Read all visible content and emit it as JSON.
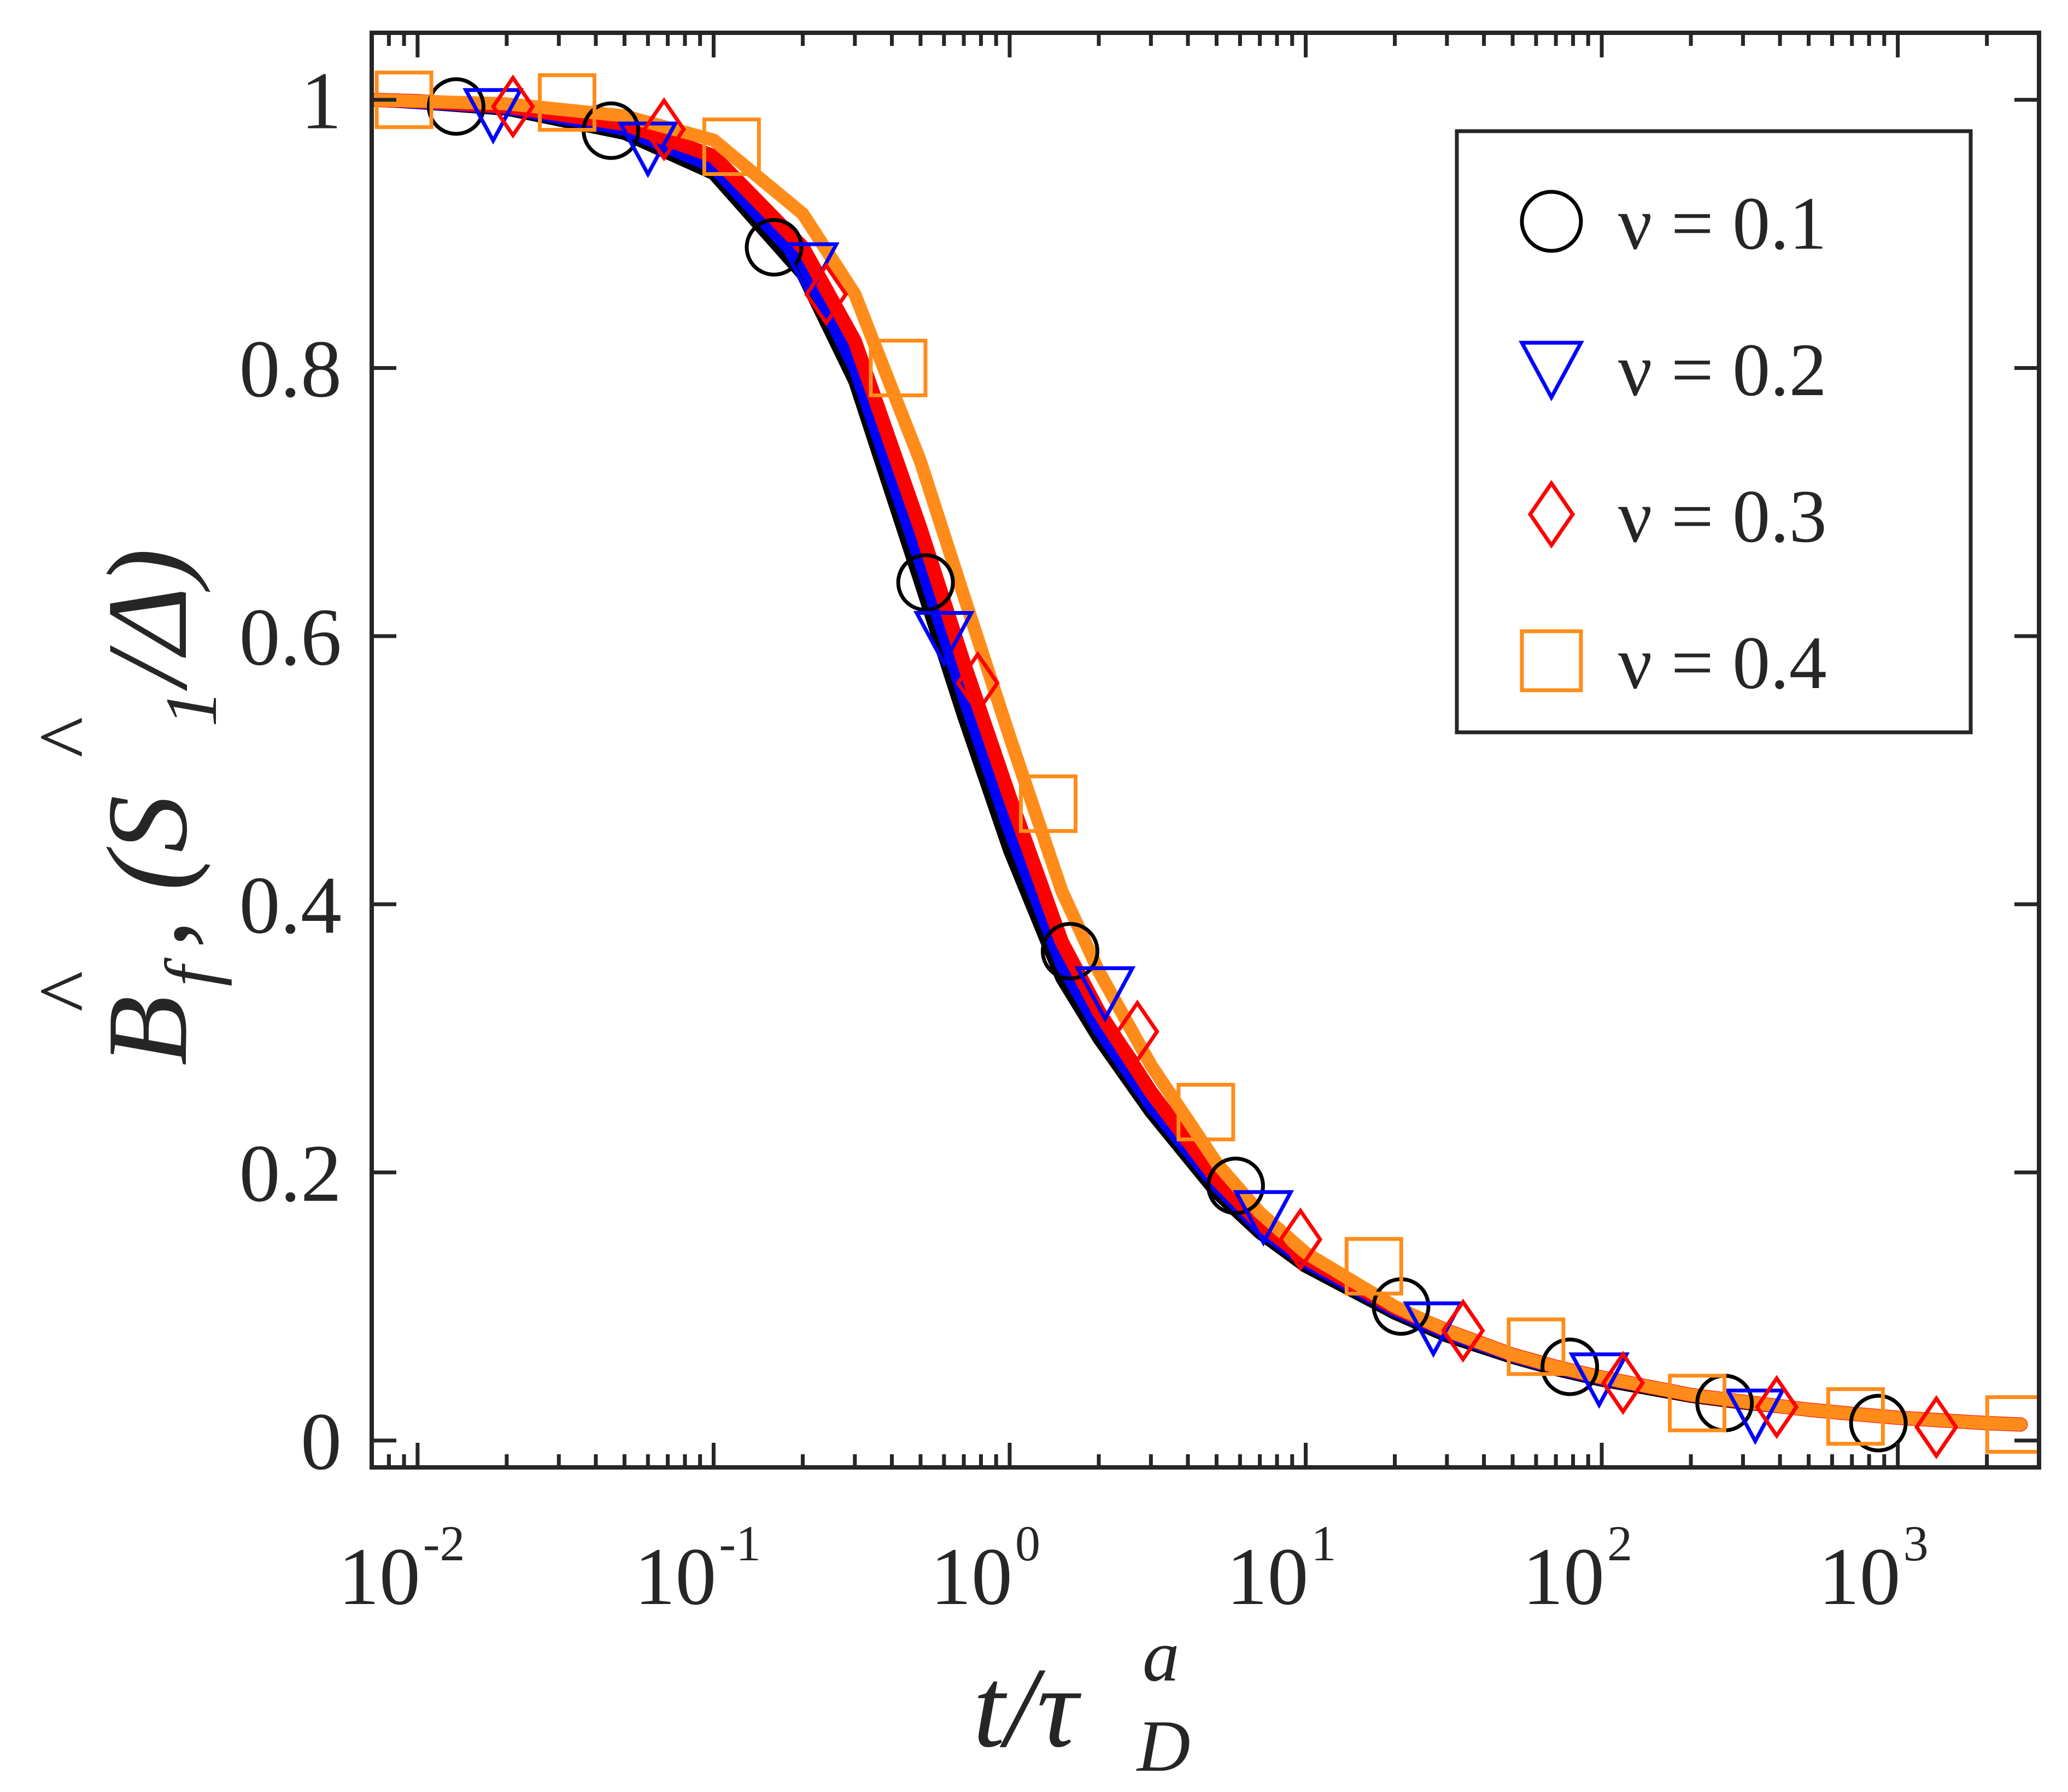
{
  "chart_data": {
    "type": "line",
    "title": "",
    "xlabel": "t/τ_D^a",
    "ylabel": "B̂_f, (S_1/Δ)̂",
    "xscale": "log",
    "xlim": [
      0.007,
      3000
    ],
    "ylim": [
      -0.02,
      1.05
    ],
    "grid": false,
    "legend_position": "top-right",
    "x_ticks": [
      {
        "value": 0.01,
        "base": "10",
        "exp": "-2"
      },
      {
        "value": 0.1,
        "base": "10",
        "exp": "-1"
      },
      {
        "value": 1,
        "base": "10",
        "exp": "0"
      },
      {
        "value": 10,
        "base": "10",
        "exp": "1"
      },
      {
        "value": 100,
        "base": "10",
        "exp": "2"
      },
      {
        "value": 1000,
        "base": "10",
        "exp": "3"
      }
    ],
    "y_ticks": [
      {
        "value": 0,
        "label": "0"
      },
      {
        "value": 0.2,
        "label": "0.2"
      },
      {
        "value": 0.4,
        "label": "0.4"
      },
      {
        "value": 0.6,
        "label": "0.6"
      },
      {
        "value": 0.8,
        "label": "0.8"
      },
      {
        "value": 1,
        "label": "1"
      }
    ],
    "series": [
      {
        "name": "ν = 0.1",
        "legend_label": "ν = 0.1",
        "marker": "circle",
        "color": "#000000",
        "curve": {
          "x": [
            0.007,
            0.01,
            0.02,
            0.05,
            0.1,
            0.2,
            0.3,
            0.5,
            0.7,
            1,
            1.5,
            2,
            3,
            5,
            7,
            10,
            20,
            30,
            50,
            70,
            100,
            200,
            300,
            500,
            700,
            1000,
            2000,
            2600
          ],
          "y": [
            1.0,
            0.998,
            0.993,
            0.975,
            0.945,
            0.87,
            0.79,
            0.64,
            0.54,
            0.44,
            0.345,
            0.3,
            0.245,
            0.185,
            0.155,
            0.13,
            0.095,
            0.078,
            0.062,
            0.053,
            0.045,
            0.033,
            0.028,
            0.023,
            0.02,
            0.017,
            0.013,
            0.012
          ]
        },
        "points": {
          "x": [
            0.0135,
            0.045,
            0.16,
            0.52,
            1.6,
            5.8,
            21,
            78,
            260,
            860
          ],
          "y": [
            0.995,
            0.977,
            0.89,
            0.64,
            0.365,
            0.19,
            0.1,
            0.055,
            0.028,
            0.013
          ]
        }
      },
      {
        "name": "ν = 0.2",
        "legend_label": "ν = 0.2",
        "marker": "triangle-down",
        "color": "#0000ff",
        "curve": {
          "x": [
            0.007,
            0.01,
            0.02,
            0.05,
            0.1,
            0.2,
            0.3,
            0.5,
            0.7,
            1,
            1.5,
            2,
            3,
            5,
            7,
            10,
            20,
            30,
            50,
            70,
            100,
            200,
            300,
            500,
            700,
            1000,
            2000,
            2600
          ],
          "y": [
            1.0,
            0.998,
            0.994,
            0.978,
            0.95,
            0.878,
            0.8,
            0.655,
            0.555,
            0.455,
            0.355,
            0.307,
            0.25,
            0.19,
            0.158,
            0.133,
            0.097,
            0.08,
            0.063,
            0.054,
            0.046,
            0.034,
            0.029,
            0.023,
            0.02,
            0.017,
            0.013,
            0.012
          ]
        },
        "points": {
          "x": [
            0.018,
            0.06,
            0.21,
            0.6,
            2.1,
            7.2,
            27,
            98,
            330
          ],
          "y": [
            0.99,
            0.965,
            0.875,
            0.6,
            0.335,
            0.168,
            0.085,
            0.047,
            0.02
          ]
        }
      },
      {
        "name": "ν = 0.3",
        "legend_label": "ν = 0.3",
        "marker": "diamond",
        "color": "#ff0000",
        "curve": {
          "x": [
            0.007,
            0.01,
            0.02,
            0.05,
            0.1,
            0.2,
            0.3,
            0.5,
            0.7,
            1,
            1.5,
            2,
            3,
            5,
            7,
            10,
            20,
            30,
            50,
            70,
            100,
            200,
            300,
            500,
            700,
            1000,
            2000,
            2600
          ],
          "y": [
            1.0,
            0.999,
            0.995,
            0.982,
            0.958,
            0.89,
            0.82,
            0.68,
            0.58,
            0.48,
            0.372,
            0.32,
            0.26,
            0.195,
            0.162,
            0.136,
            0.099,
            0.082,
            0.064,
            0.055,
            0.047,
            0.034,
            0.029,
            0.023,
            0.02,
            0.017,
            0.013,
            0.012
          ]
        },
        "points": {
          "x": [
            0.021,
            0.068,
            0.24,
            0.78,
            2.7,
            9.6,
            34,
            118,
            390,
            1350
          ],
          "y": [
            0.995,
            0.978,
            0.855,
            0.565,
            0.305,
            0.15,
            0.082,
            0.043,
            0.025,
            0.01
          ]
        }
      },
      {
        "name": "ν = 0.4",
        "legend_label": "ν = 0.4",
        "marker": "square",
        "color": "#ff8c1a",
        "curve": {
          "x": [
            0.007,
            0.01,
            0.02,
            0.05,
            0.1,
            0.2,
            0.3,
            0.5,
            0.7,
            1,
            1.5,
            2,
            3,
            5,
            7,
            10,
            20,
            30,
            50,
            70,
            100,
            200,
            300,
            500,
            700,
            1000,
            2000,
            2600
          ],
          "y": [
            1.0,
            0.999,
            0.997,
            0.988,
            0.97,
            0.915,
            0.855,
            0.73,
            0.63,
            0.525,
            0.41,
            0.35,
            0.28,
            0.207,
            0.17,
            0.14,
            0.1,
            0.082,
            0.064,
            0.055,
            0.047,
            0.034,
            0.029,
            0.023,
            0.02,
            0.017,
            0.013,
            0.012
          ]
        },
        "points": {
          "x": [
            0.009,
            0.032,
            0.115,
            0.42,
            1.35,
            4.6,
            17,
            60,
            210,
            720,
            2480
          ],
          "y": [
            1.0,
            0.998,
            0.965,
            0.8,
            0.475,
            0.245,
            0.13,
            0.07,
            0.028,
            0.018,
            0.012
          ]
        }
      }
    ]
  }
}
